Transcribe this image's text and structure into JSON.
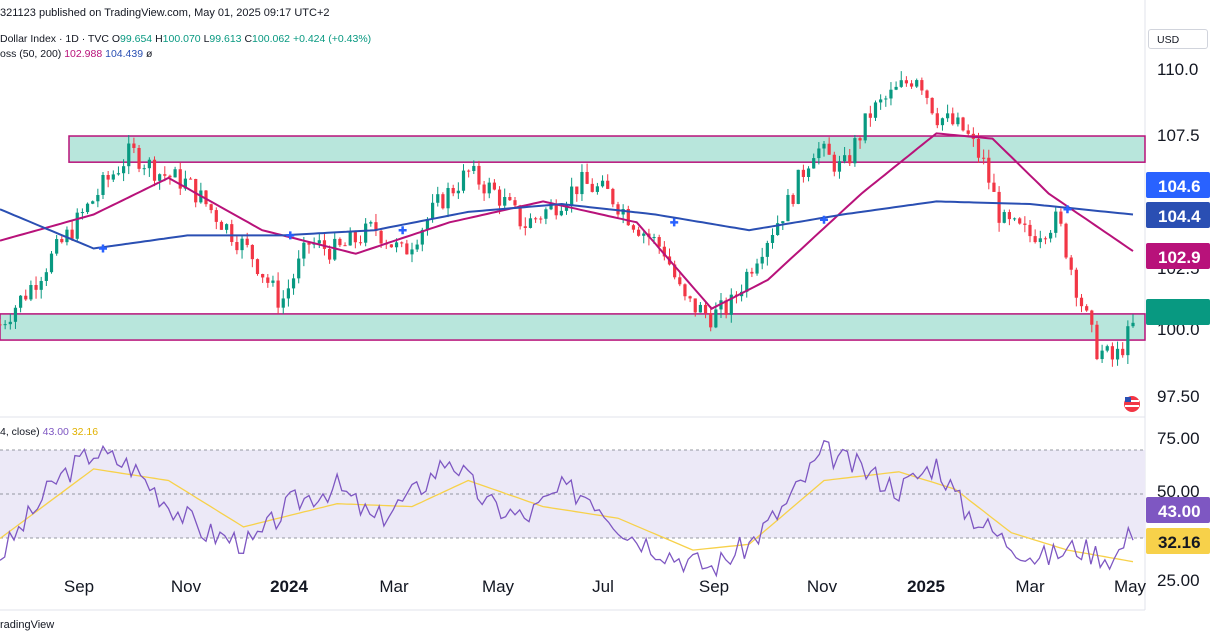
{
  "header": {
    "publisher_line": "321123 published on TradingView.com, May 01, 2025 09:17 UTC+2"
  },
  "legend": {
    "symbol": "Dollar Index · 1D · TVC",
    "o_label": "O",
    "o_value": "99.654",
    "h_label": "H",
    "h_value": "100.070",
    "l_label": "L",
    "l_value": "99.613",
    "c_label": "C",
    "c_value": "100.062",
    "change": "+0.424 (+0.43%)",
    "ma_label": "oss (50, 200)",
    "ma50_value": "102.988",
    "ma200_value": "104.439",
    "ma_suffix": "ø"
  },
  "rsi_legend": {
    "label": "4, close)",
    "rsi_value": "43.00",
    "ma_value": "32.16"
  },
  "currency_button": "USD",
  "footer": {
    "brand": "radingView"
  },
  "colors": {
    "up": "#089981",
    "down": "#f23645",
    "ma50": "#b8127a",
    "ma200": "#2a4fb3",
    "zone_fill": "#b8e6dc",
    "zone_border": "#b8127a",
    "rsi_line": "#7e57c2",
    "rsi_ma": "#f7d14a",
    "rsi_band": "#ece9f7"
  },
  "chart_data": [
    {
      "type": "candlestick",
      "title": "Dollar Index · 1D · TVC",
      "currency": "USD",
      "x_ticks": [
        "Sep",
        "Nov",
        "2024",
        "Mar",
        "May",
        "Jul",
        "Sep",
        "Nov",
        "2025",
        "Mar",
        "May"
      ],
      "y_ticks": [
        "110.0",
        "107.5",
        "102.5",
        "100.0",
        "97.50"
      ],
      "ylim": [
        96.8,
        111.2
      ],
      "zones": [
        [
          106.4,
          107.4
        ],
        [
          99.6,
          100.6
        ]
      ],
      "price_labels": [
        {
          "value": "104.6",
          "color": "#2962ff"
        },
        {
          "value": "104.4",
          "color": "#2a4fb3"
        },
        {
          "value": "102.9",
          "color": "#b8127a"
        },
        {
          "value": "",
          "color": "#089981",
          "level": 100.06
        }
      ],
      "price_keypoints": [
        [
          0,
          100.2
        ],
        [
          3,
          101.5
        ],
        [
          7,
          103.5
        ],
        [
          11,
          105.5
        ],
        [
          14,
          106.8
        ],
        [
          17,
          106.0
        ],
        [
          20,
          105.6
        ],
        [
          23,
          104.4
        ],
        [
          27,
          102.8
        ],
        [
          30,
          101.0
        ],
        [
          33,
          103.3
        ],
        [
          36,
          103.0
        ],
        [
          40,
          103.9
        ],
        [
          43,
          102.9
        ],
        [
          47,
          104.9
        ],
        [
          50,
          106.0
        ],
        [
          53,
          105.2
        ],
        [
          56,
          104.0
        ],
        [
          59,
          104.7
        ],
        [
          62,
          105.6
        ],
        [
          65,
          105.2
        ],
        [
          68,
          104.0
        ],
        [
          71,
          103.0
        ],
        [
          73,
          101.1
        ],
        [
          76,
          100.5
        ],
        [
          78,
          100.9
        ],
        [
          81,
          103.0
        ],
        [
          84,
          104.7
        ],
        [
          87,
          107.0
        ],
        [
          90,
          106.1
        ],
        [
          93,
          108.3
        ],
        [
          96,
          109.2
        ],
        [
          98,
          109.8
        ],
        [
          100,
          108.2
        ],
        [
          103,
          107.6
        ],
        [
          105,
          106.4
        ],
        [
          107,
          104.1
        ],
        [
          110,
          103.6
        ],
        [
          113,
          104.2
        ],
        [
          115,
          101.6
        ],
        [
          117,
          99.3
        ],
        [
          119,
          98.8
        ],
        [
          121,
          100.1
        ]
      ],
      "ma50_keypoints": [
        [
          0,
          103.4
        ],
        [
          10,
          104.4
        ],
        [
          18,
          105.8
        ],
        [
          28,
          103.8
        ],
        [
          38,
          102.9
        ],
        [
          48,
          104.1
        ],
        [
          58,
          104.9
        ],
        [
          68,
          104.1
        ],
        [
          76,
          100.8
        ],
        [
          82,
          101.9
        ],
        [
          92,
          105.2
        ],
        [
          100,
          107.5
        ],
        [
          106,
          107.3
        ],
        [
          112,
          105.2
        ],
        [
          121,
          103.0
        ]
      ],
      "ma200_keypoints": [
        [
          0,
          104.6
        ],
        [
          10,
          103.1
        ],
        [
          20,
          103.6
        ],
        [
          30,
          103.6
        ],
        [
          40,
          103.8
        ],
        [
          50,
          104.5
        ],
        [
          60,
          104.8
        ],
        [
          70,
          104.4
        ],
        [
          80,
          103.8
        ],
        [
          90,
          104.4
        ],
        [
          100,
          104.9
        ],
        [
          110,
          104.8
        ],
        [
          121,
          104.4
        ]
      ],
      "cross_points": [
        [
          11,
          103.1
        ],
        [
          31,
          103.6
        ],
        [
          43,
          103.8
        ],
        [
          72,
          104.1
        ],
        [
          88,
          104.2
        ],
        [
          114,
          104.6
        ]
      ]
    },
    {
      "type": "line",
      "title": "RSI (14, close)",
      "y_ticks": [
        "75.00",
        "50.00",
        "25.00"
      ],
      "ylim": [
        25,
        78
      ],
      "band": [
        30,
        70
      ],
      "series": [
        {
          "name": "RSI",
          "keypoints": [
            [
              0,
              34
            ],
            [
              6,
              60
            ],
            [
              10,
              70
            ],
            [
              14,
              65
            ],
            [
              18,
              52
            ],
            [
              22,
              42
            ],
            [
              27,
              38
            ],
            [
              31,
              52
            ],
            [
              36,
              58
            ],
            [
              40,
              46
            ],
            [
              44,
              55
            ],
            [
              48,
              68
            ],
            [
              52,
              52
            ],
            [
              56,
              47
            ],
            [
              60,
              57
            ],
            [
              63,
              55
            ],
            [
              67,
              42
            ],
            [
              72,
              34
            ],
            [
              76,
              30
            ],
            [
              80,
              38
            ],
            [
              84,
              52
            ],
            [
              88,
              70
            ],
            [
              92,
              64
            ],
            [
              96,
              57
            ],
            [
              100,
              66
            ],
            [
              103,
              50
            ],
            [
              107,
              40
            ],
            [
              111,
              33
            ],
            [
              115,
              37
            ],
            [
              119,
              33
            ],
            [
              121,
              43
            ]
          ]
        },
        {
          "name": "RSI MA",
          "keypoints": [
            [
              0,
              40
            ],
            [
              10,
              64
            ],
            [
              18,
              60
            ],
            [
              26,
              44
            ],
            [
              36,
              52
            ],
            [
              44,
              51
            ],
            [
              50,
              60
            ],
            [
              58,
              51
            ],
            [
              66,
              47
            ],
            [
              74,
              36
            ],
            [
              80,
              38
            ],
            [
              88,
              60
            ],
            [
              96,
              63
            ],
            [
              102,
              57
            ],
            [
              108,
              42
            ],
            [
              114,
              36
            ],
            [
              121,
              32
            ]
          ]
        }
      ]
    }
  ]
}
